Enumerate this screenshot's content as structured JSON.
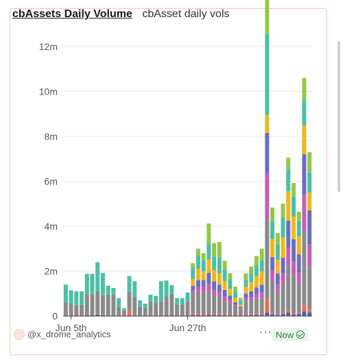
{
  "header": {
    "title": "cbAssets Daily Volume",
    "subtitle": "cbAsset daily vols"
  },
  "footer": {
    "author": "@x_drome_analytics",
    "more": "···",
    "status": "Now"
  },
  "chart_data": {
    "type": "bar",
    "stacked": true,
    "ylim": [
      0,
      13000000
    ],
    "yticks": [
      0,
      2000000,
      4000000,
      6000000,
      8000000,
      10000000,
      12000000
    ],
    "ytick_labels": [
      "0",
      "2m",
      "4m",
      "6m",
      "8m",
      "10m",
      "12m"
    ],
    "xtick_labels": [
      {
        "index": 1,
        "label": "Jun 5th"
      },
      {
        "index": 23,
        "label": "Jun 27th"
      }
    ],
    "grid": true,
    "colors": [
      "#4a5bb0",
      "#e8704f",
      "#8a8a8a",
      "#c55fb5",
      "#6a6fc0",
      "#f0b61e",
      "#4dbfa5",
      "#93c74a"
    ],
    "series": [
      {
        "values": [
          0.03,
          0.03,
          0.03,
          0.03,
          0.05,
          0.05,
          0.07,
          0.05,
          0.03,
          0.03,
          0.03,
          0.03,
          0.03,
          0.03,
          0.03,
          0.03,
          0.03,
          0.03,
          0.03,
          0.05,
          0.05,
          0.03,
          0.03,
          0.03,
          0.05,
          0.05,
          0.05,
          0.07,
          0.05,
          0.05,
          0.03,
          0.03,
          0.03,
          0.03,
          0.05,
          0.05,
          0.07,
          0.05,
          0.15,
          0.08,
          0.05,
          0.1,
          0.15,
          0.07,
          0.1,
          0.2,
          0.15
        ]
      },
      {
        "values": [
          0.02,
          0.02,
          0.02,
          0.02,
          0.03,
          0.03,
          0.03,
          0.02,
          0.02,
          0.02,
          0.02,
          0.02,
          0.2,
          0.02,
          0.02,
          0.02,
          0.02,
          0.02,
          0.02,
          0.03,
          0.03,
          0.02,
          0.02,
          0.02,
          0.05,
          0.05,
          0.05,
          0.05,
          0.05,
          0.05,
          0.03,
          0.03,
          0.03,
          0.03,
          0.05,
          0.05,
          0.05,
          0.05,
          0.6,
          0.05,
          0.05,
          0.05,
          0.1,
          0.05,
          0.05,
          0.3,
          0.15
        ]
      },
      {
        "values": [
          0.55,
          0.5,
          0.45,
          0.45,
          0.9,
          0.9,
          1.0,
          0.85,
          0.9,
          0.9,
          0.35,
          0.2,
          0.85,
          0.8,
          0.35,
          0.3,
          0.6,
          0.55,
          0.6,
          0.8,
          0.9,
          0.45,
          0.45,
          0.6,
          0.9,
          1.0,
          0.95,
          1.0,
          0.8,
          0.8,
          0.6,
          0.5,
          0.35,
          0.25,
          0.6,
          0.6,
          0.65,
          0.7,
          3.6,
          1.5,
          1.0,
          1.3,
          2.0,
          1.7,
          1.3,
          3.3,
          1.9
        ]
      },
      {
        "values": [
          0,
          0,
          0,
          0,
          0,
          0,
          0,
          0,
          0,
          0,
          0,
          0,
          0,
          0,
          0,
          0,
          0,
          0,
          0,
          0,
          0,
          0,
          0,
          0,
          0.15,
          0.2,
          0.25,
          0.3,
          0.25,
          0.2,
          0.2,
          0.15,
          0.1,
          0.05,
          0.1,
          0.15,
          0.2,
          0.25,
          2.0,
          0.4,
          0.3,
          0.45,
          0.8,
          0.6,
          0.5,
          1.6,
          1.0
        ]
      },
      {
        "values": [
          0,
          0,
          0,
          0,
          0,
          0,
          0,
          0,
          0,
          0,
          0,
          0,
          0,
          0,
          0,
          0,
          0,
          0,
          0,
          0,
          0,
          0,
          0,
          0,
          0.2,
          0.3,
          0.3,
          0.5,
          0.4,
          0.3,
          0.3,
          0.2,
          0.1,
          0.05,
          0.2,
          0.25,
          0.3,
          0.35,
          1.8,
          0.6,
          0.5,
          0.7,
          1.2,
          1.0,
          0.8,
          1.8,
          1.5
        ]
      },
      {
        "values": [
          0,
          0,
          0,
          0,
          0,
          0,
          0,
          0,
          0,
          0,
          0,
          0,
          0,
          0,
          0,
          0,
          0,
          0,
          0,
          0,
          0,
          0,
          0,
          0,
          0.3,
          0.5,
          0.4,
          0.6,
          0.5,
          0.5,
          0.4,
          0.3,
          0.2,
          0.1,
          0.3,
          0.4,
          0.5,
          0.6,
          0.8,
          0.8,
          0.6,
          0.9,
          1.3,
          1.0,
          0.8,
          1.3,
          0.8
        ]
      },
      {
        "values": [
          0.8,
          0.6,
          0.6,
          0.6,
          0.9,
          0.9,
          1.3,
          1.0,
          0.4,
          0.3,
          0.4,
          0.1,
          0.7,
          0.7,
          0.3,
          0.2,
          0.3,
          0.3,
          0.9,
          0.7,
          0.4,
          0.3,
          0.3,
          0.4,
          0.5,
          0.6,
          0.5,
          0.7,
          0.6,
          0.7,
          0.5,
          0.4,
          0.3,
          0.2,
          0.3,
          0.4,
          0.5,
          0.5,
          3.6,
          0.8,
          0.7,
          0.9,
          1.0,
          0.9,
          0.7,
          1.1,
          0.9
        ]
      },
      {
        "values": [
          0,
          0,
          0,
          0,
          0,
          0,
          0,
          0,
          0,
          0,
          0,
          0,
          0,
          0,
          0,
          0,
          0,
          0,
          0,
          0,
          0,
          0,
          0,
          0,
          0.2,
          0.3,
          0.3,
          0.9,
          0.6,
          0.7,
          0.4,
          0.3,
          0.2,
          0.1,
          0.3,
          0.3,
          0.4,
          0.5,
          1.8,
          0.6,
          0.5,
          0.6,
          0.5,
          0.6,
          0.4,
          1.0,
          0.9
        ]
      }
    ],
    "value_unit": "millions"
  }
}
